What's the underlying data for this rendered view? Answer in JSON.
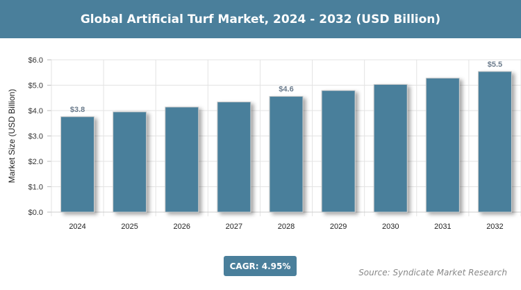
{
  "chart_data": {
    "type": "bar",
    "title": "Global Artificial Turf Market, 2024 - 2032 (USD Billion)",
    "xlabel": "",
    "ylabel": "Market Size (USD Billion)",
    "categories": [
      "2024",
      "2025",
      "2026",
      "2027",
      "2028",
      "2029",
      "2030",
      "2031",
      "2032"
    ],
    "values": [
      3.76,
      3.95,
      4.14,
      4.34,
      4.56,
      4.79,
      5.03,
      5.28,
      5.54
    ],
    "data_labels": {
      "0": "$3.8",
      "4": "$4.6",
      "8": "$5.5"
    },
    "ylim": [
      0,
      6
    ],
    "yticks": [
      "$0.0",
      "$1.0",
      "$2.0",
      "$3.0",
      "$4.0",
      "$5.0",
      "$6.0"
    ],
    "grid": true,
    "bar_color": "#4a7f9b"
  },
  "cagr": "CAGR: 4.95%",
  "source": "Source: Syndicate Market Research"
}
